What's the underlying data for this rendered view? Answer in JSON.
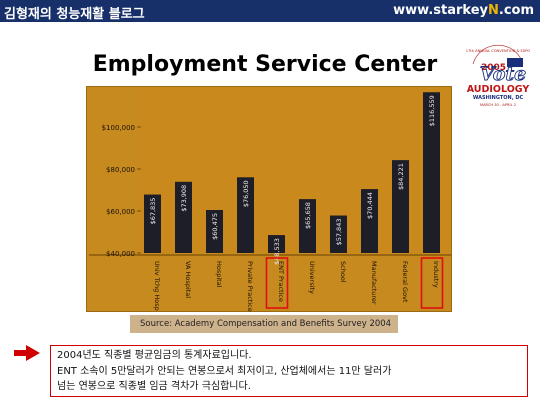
{
  "header": {
    "blog_title": "김형재의 청능재활 블로그",
    "url_prefix": "www.starkey",
    "url_highlight": "N",
    "url_suffix": ".com"
  },
  "slide": {
    "title": "Employment Service Center",
    "source": "Source:  Academy Compensation and Benefits Survey 2004"
  },
  "logo": {
    "top_text": "17th ANNUAL CONVENTION & EXPO",
    "year": "2005",
    "main": "AUDIOLOGY",
    "place": "WASHINGTON, DC",
    "dates": "MARCH 30 - APRIL 2"
  },
  "note": {
    "line1": "2004년도 직종별 평균임금의 통계자료입니다.",
    "line2": "ENT 소속이 5만달러가 안되는 연봉으로서 최저이고, 산업체에서는 11만 달러가",
    "line3": "넘는 연봉으로 직종별 임금 격차가 극심합니다."
  },
  "colors": {
    "header_bg": "#17306a",
    "header_highlight": "#f0b400",
    "chart_bg": "#c78a1f",
    "bar": "#1e1e28",
    "highlight_box": "#e01010",
    "note_border": "#d00000"
  },
  "chart_data": {
    "type": "bar",
    "title": "",
    "xlabel": "",
    "ylabel": "",
    "ylim": [
      40000,
      120000
    ],
    "yticks": [
      40000,
      60000,
      80000,
      100000
    ],
    "ytick_labels": [
      "$40,000",
      "$60,000",
      "$80,000",
      "$100,000"
    ],
    "categories": [
      "Univ Tchg Hosp",
      "VA Hospital",
      "Hospital",
      "Private Practice",
      "ENT Practice",
      "University",
      "School",
      "Manufacturer",
      "Federal Govt",
      "Industry"
    ],
    "values": [
      67835,
      73908,
      60475,
      76050,
      48533,
      65658,
      57843,
      70444,
      84221,
      116559
    ],
    "value_labels": [
      "$67,835",
      "$73,908",
      "$60,475",
      "$76,050",
      "$48,533",
      "$65,658",
      "$57,843",
      "$70,444",
      "$84,221",
      "$116,559"
    ],
    "highlighted": [
      "ENT Practice",
      "Industry"
    ],
    "grid": false,
    "legend": "none"
  }
}
